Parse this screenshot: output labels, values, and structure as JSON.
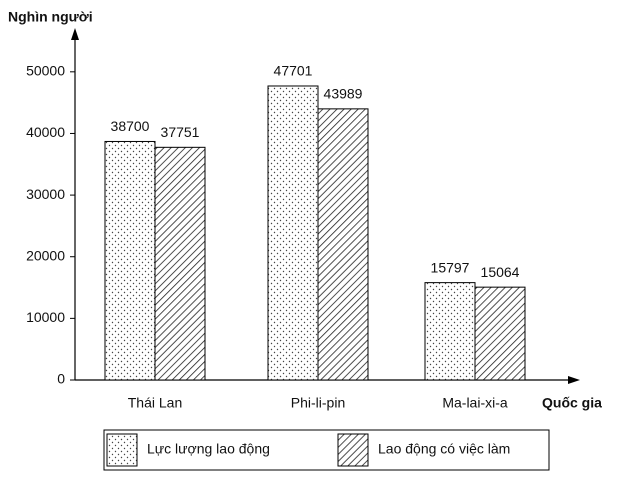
{
  "chart_data": {
    "type": "bar",
    "y_label": "Nghìn người",
    "x_label": "Quốc gia",
    "categories": [
      "Thái Lan",
      "Phi-li-pin",
      "Ma-lai-xi-a"
    ],
    "series": [
      {
        "name": "Lực lượng lao động",
        "pattern": "dots",
        "values": [
          38700,
          47701,
          15797
        ]
      },
      {
        "name": "Lao động có việc làm",
        "pattern": "hatch",
        "values": [
          37751,
          43989,
          15064
        ]
      }
    ],
    "ylim": [
      0,
      55000
    ],
    "yticks": [
      0,
      10000,
      20000,
      30000,
      40000,
      50000
    ]
  }
}
